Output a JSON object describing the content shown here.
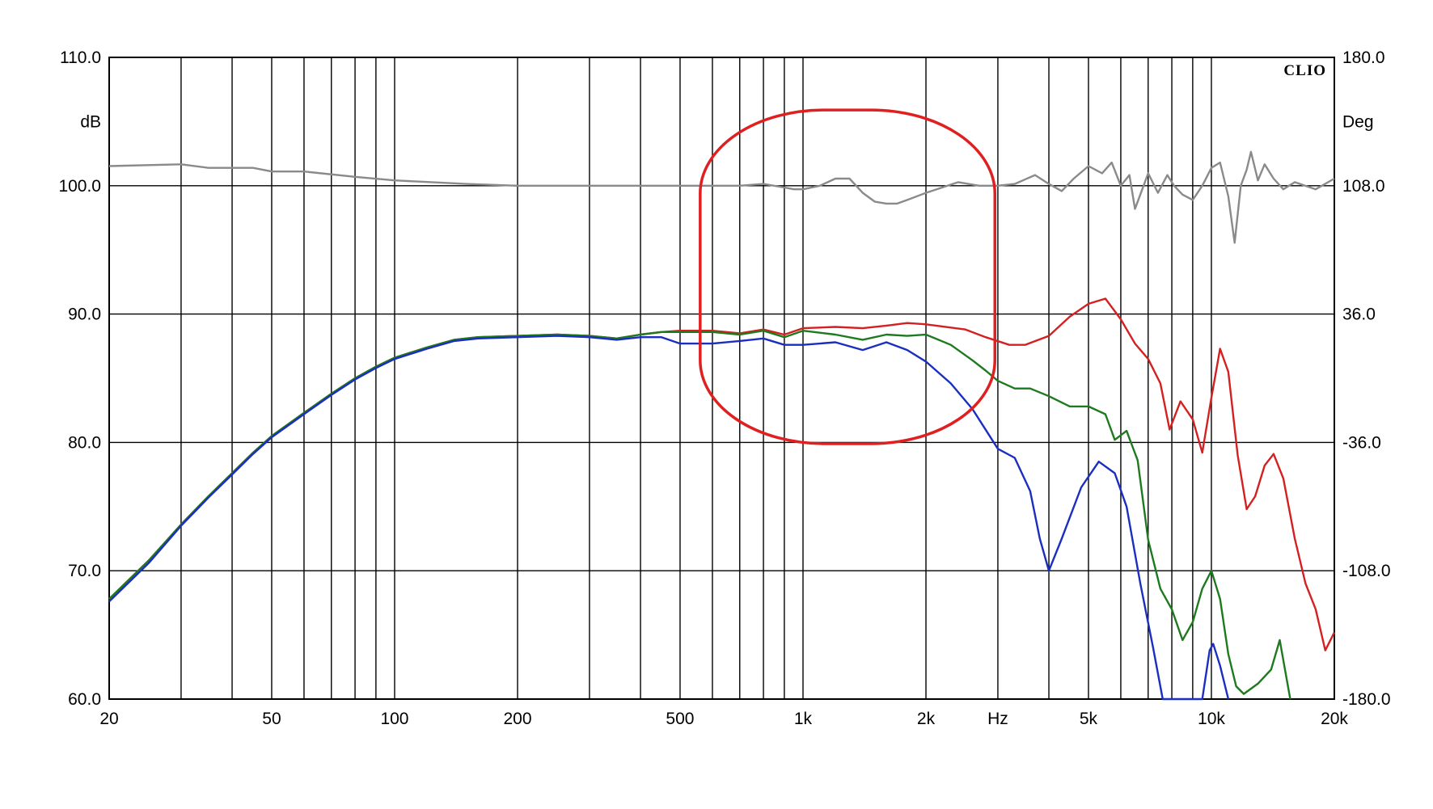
{
  "chart_data": {
    "type": "line",
    "brand": "CLIO",
    "x_scale": "log",
    "xlim": [
      20,
      20000
    ],
    "ylim": [
      60,
      110
    ],
    "y2lim": [
      -180,
      180
    ],
    "left_unit": "dB",
    "right_unit": "Deg",
    "x_unit": "Hz",
    "grid": true,
    "x_tick_labels": [
      {
        "value": 20,
        "label": "20"
      },
      {
        "value": 50,
        "label": "50"
      },
      {
        "value": 100,
        "label": "100"
      },
      {
        "value": 200,
        "label": "200"
      },
      {
        "value": 500,
        "label": "500"
      },
      {
        "value": 1000,
        "label": "1k"
      },
      {
        "value": 2000,
        "label": "2k"
      },
      {
        "value": 3000,
        "label": "Hz"
      },
      {
        "value": 5000,
        "label": "5k"
      },
      {
        "value": 10000,
        "label": "10k"
      },
      {
        "value": 20000,
        "label": "20k"
      }
    ],
    "y_tick_labels": [
      {
        "value": 60,
        "label": "60.0"
      },
      {
        "value": 70,
        "label": "70.0"
      },
      {
        "value": 80,
        "label": "80.0"
      },
      {
        "value": 90,
        "label": "90.0"
      },
      {
        "value": 100,
        "label": "100.0"
      },
      {
        "value": 110,
        "label": "110.0"
      }
    ],
    "y2_tick_labels": [
      {
        "value": -180,
        "label": "-180.0"
      },
      {
        "value": -108,
        "label": "-108.0"
      },
      {
        "value": -36,
        "label": "-36.0"
      },
      {
        "value": 36,
        "label": "36.0"
      },
      {
        "value": 108,
        "label": "108.0"
      },
      {
        "value": 180,
        "label": "180.0"
      }
    ],
    "series": [
      {
        "color": "#d42020",
        "points": [
          [
            20,
            67.8
          ],
          [
            25,
            70.8
          ],
          [
            30,
            73.6
          ],
          [
            35,
            75.8
          ],
          [
            40,
            77.6
          ],
          [
            45,
            79.2
          ],
          [
            50,
            80.5
          ],
          [
            60,
            82.3
          ],
          [
            70,
            83.8
          ],
          [
            80,
            85.0
          ],
          [
            90,
            85.9
          ],
          [
            100,
            86.6
          ],
          [
            120,
            87.4
          ],
          [
            140,
            88.0
          ],
          [
            160,
            88.2
          ],
          [
            200,
            88.3
          ],
          [
            250,
            88.4
          ],
          [
            300,
            88.3
          ],
          [
            350,
            88.1
          ],
          [
            400,
            88.4
          ],
          [
            450,
            88.6
          ],
          [
            500,
            88.7
          ],
          [
            600,
            88.7
          ],
          [
            700,
            88.5
          ],
          [
            800,
            88.8
          ],
          [
            900,
            88.4
          ],
          [
            1000,
            88.9
          ],
          [
            1200,
            89.0
          ],
          [
            1400,
            88.9
          ],
          [
            1600,
            89.1
          ],
          [
            1800,
            89.3
          ],
          [
            2000,
            89.2
          ],
          [
            2500,
            88.8
          ],
          [
            2800,
            88.2
          ],
          [
            3200,
            87.6
          ],
          [
            3500,
            87.6
          ],
          [
            4000,
            88.3
          ],
          [
            4500,
            89.8
          ],
          [
            5000,
            90.8
          ],
          [
            5500,
            91.2
          ],
          [
            6000,
            89.6
          ],
          [
            6500,
            87.7
          ],
          [
            7000,
            86.5
          ],
          [
            7500,
            84.6
          ],
          [
            7900,
            81.0
          ],
          [
            8400,
            83.2
          ],
          [
            9000,
            81.8
          ],
          [
            9500,
            79.2
          ],
          [
            10000,
            83.5
          ],
          [
            10500,
            87.3
          ],
          [
            11000,
            85.5
          ],
          [
            11600,
            79.0
          ],
          [
            12200,
            74.8
          ],
          [
            12800,
            75.8
          ],
          [
            13500,
            78.2
          ],
          [
            14200,
            79.1
          ],
          [
            15000,
            77.2
          ],
          [
            16000,
            72.5
          ],
          [
            17000,
            69.0
          ],
          [
            18000,
            67.0
          ],
          [
            19000,
            63.8
          ],
          [
            20000,
            65.2
          ]
        ]
      },
      {
        "color": "#1e7a1e",
        "points": [
          [
            20,
            67.8
          ],
          [
            25,
            70.8
          ],
          [
            30,
            73.6
          ],
          [
            35,
            75.8
          ],
          [
            40,
            77.6
          ],
          [
            45,
            79.2
          ],
          [
            50,
            80.5
          ],
          [
            60,
            82.3
          ],
          [
            70,
            83.8
          ],
          [
            80,
            85.0
          ],
          [
            90,
            85.9
          ],
          [
            100,
            86.6
          ],
          [
            120,
            87.4
          ],
          [
            140,
            88.0
          ],
          [
            160,
            88.2
          ],
          [
            200,
            88.3
          ],
          [
            250,
            88.4
          ],
          [
            300,
            88.3
          ],
          [
            350,
            88.1
          ],
          [
            400,
            88.4
          ],
          [
            450,
            88.6
          ],
          [
            500,
            88.6
          ],
          [
            600,
            88.6
          ],
          [
            700,
            88.4
          ],
          [
            800,
            88.7
          ],
          [
            900,
            88.2
          ],
          [
            1000,
            88.7
          ],
          [
            1200,
            88.4
          ],
          [
            1400,
            88.0
          ],
          [
            1600,
            88.4
          ],
          [
            1800,
            88.3
          ],
          [
            2000,
            88.4
          ],
          [
            2300,
            87.6
          ],
          [
            2600,
            86.4
          ],
          [
            2800,
            85.6
          ],
          [
            3000,
            84.8
          ],
          [
            3300,
            84.2
          ],
          [
            3600,
            84.2
          ],
          [
            4000,
            83.6
          ],
          [
            4500,
            82.8
          ],
          [
            5000,
            82.8
          ],
          [
            5500,
            82.2
          ],
          [
            5800,
            80.2
          ],
          [
            6200,
            80.9
          ],
          [
            6600,
            78.6
          ],
          [
            7000,
            72.4
          ],
          [
            7500,
            68.6
          ],
          [
            8000,
            67.0
          ],
          [
            8500,
            64.6
          ],
          [
            9000,
            66.0
          ],
          [
            9500,
            68.6
          ],
          [
            10000,
            70.0
          ],
          [
            10500,
            67.8
          ],
          [
            11000,
            63.5
          ],
          [
            11500,
            61.0
          ],
          [
            12000,
            60.4
          ],
          [
            13000,
            61.2
          ],
          [
            14000,
            62.3
          ],
          [
            14700,
            64.6
          ],
          [
            15200,
            62.0
          ],
          [
            15600,
            60.0
          ]
        ]
      },
      {
        "color": "#1a2ec0",
        "points": [
          [
            20,
            67.6
          ],
          [
            25,
            70.6
          ],
          [
            30,
            73.5
          ],
          [
            35,
            75.7
          ],
          [
            40,
            77.5
          ],
          [
            45,
            79.1
          ],
          [
            50,
            80.4
          ],
          [
            60,
            82.2
          ],
          [
            70,
            83.7
          ],
          [
            80,
            84.9
          ],
          [
            90,
            85.8
          ],
          [
            100,
            86.5
          ],
          [
            120,
            87.3
          ],
          [
            140,
            87.9
          ],
          [
            160,
            88.1
          ],
          [
            200,
            88.2
          ],
          [
            250,
            88.3
          ],
          [
            300,
            88.2
          ],
          [
            350,
            88.0
          ],
          [
            400,
            88.2
          ],
          [
            450,
            88.2
          ],
          [
            500,
            87.7
          ],
          [
            600,
            87.7
          ],
          [
            700,
            87.9
          ],
          [
            800,
            88.1
          ],
          [
            900,
            87.6
          ],
          [
            1000,
            87.6
          ],
          [
            1200,
            87.8
          ],
          [
            1400,
            87.2
          ],
          [
            1600,
            87.8
          ],
          [
            1800,
            87.2
          ],
          [
            2000,
            86.3
          ],
          [
            2300,
            84.6
          ],
          [
            2600,
            82.6
          ],
          [
            3000,
            79.5
          ],
          [
            3300,
            78.8
          ],
          [
            3600,
            76.2
          ],
          [
            3800,
            72.5
          ],
          [
            4000,
            70.0
          ],
          [
            4300,
            72.5
          ],
          [
            4800,
            76.5
          ],
          [
            5300,
            78.5
          ],
          [
            5800,
            77.6
          ],
          [
            6200,
            75.0
          ],
          [
            6700,
            69.0
          ],
          [
            7200,
            64.0
          ],
          [
            7600,
            60.0
          ],
          [
            9500,
            60.0
          ],
          [
            9900,
            63.8
          ],
          [
            10100,
            64.3
          ],
          [
            10500,
            62.6
          ],
          [
            11000,
            60.0
          ]
        ]
      },
      {
        "color": "#8a8a8a",
        "axis": "right",
        "points": [
          [
            20,
            119
          ],
          [
            30,
            120
          ],
          [
            35,
            118
          ],
          [
            45,
            118
          ],
          [
            50,
            116
          ],
          [
            60,
            116
          ],
          [
            80,
            113
          ],
          [
            100,
            111
          ],
          [
            150,
            109
          ],
          [
            200,
            108
          ],
          [
            300,
            108
          ],
          [
            400,
            108
          ],
          [
            500,
            108
          ],
          [
            700,
            108
          ],
          [
            800,
            109
          ],
          [
            900,
            107
          ],
          [
            950,
            106
          ],
          [
            1000,
            106
          ],
          [
            1100,
            108
          ],
          [
            1200,
            112
          ],
          [
            1300,
            112
          ],
          [
            1400,
            104
          ],
          [
            1500,
            99
          ],
          [
            1600,
            98
          ],
          [
            1700,
            98
          ],
          [
            1800,
            100
          ],
          [
            2000,
            104
          ],
          [
            2400,
            110
          ],
          [
            2700,
            108
          ],
          [
            3000,
            108
          ],
          [
            3300,
            109
          ],
          [
            3700,
            114
          ],
          [
            4000,
            109
          ],
          [
            4300,
            105
          ],
          [
            4600,
            112
          ],
          [
            5000,
            119
          ],
          [
            5400,
            115
          ],
          [
            5700,
            121
          ],
          [
            6000,
            108
          ],
          [
            6300,
            114
          ],
          [
            6500,
            95
          ],
          [
            7000,
            115
          ],
          [
            7400,
            104
          ],
          [
            7800,
            114
          ],
          [
            8100,
            108
          ],
          [
            8500,
            103
          ],
          [
            9000,
            100
          ],
          [
            9500,
            108
          ],
          [
            10000,
            118
          ],
          [
            10500,
            121
          ],
          [
            11000,
            102
          ],
          [
            11400,
            76
          ],
          [
            11800,
            108
          ],
          [
            12200,
            117
          ],
          [
            12500,
            127
          ],
          [
            13000,
            111
          ],
          [
            13500,
            120
          ],
          [
            14200,
            112
          ],
          [
            15000,
            106
          ],
          [
            16000,
            110
          ],
          [
            18000,
            106
          ],
          [
            20000,
            112
          ]
        ]
      }
    ],
    "annotations": [
      {
        "type": "rounded-rectangle",
        "color": "#e02020",
        "x_range": [
          560,
          2950
        ],
        "y_range": [
          79.9,
          105.9
        ]
      }
    ]
  }
}
